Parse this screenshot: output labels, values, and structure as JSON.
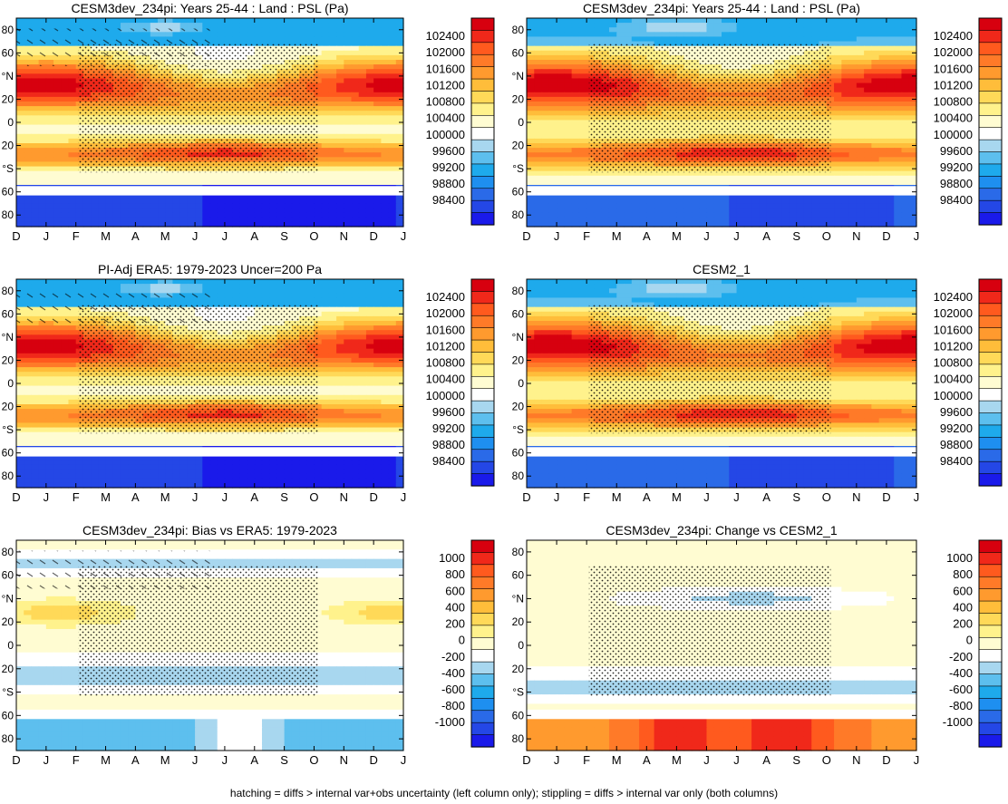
{
  "footnote": "hatching = diffs > internal var+obs uncertainty (left column only); stippling = diffs > internal var only (both columns)",
  "axes": {
    "months": [
      "D",
      "J",
      "F",
      "M",
      "A",
      "M",
      "J",
      "J",
      "A",
      "S",
      "O",
      "N",
      "D",
      "J"
    ],
    "lat_tick_labels": [
      "80",
      "60",
      "°N",
      "20",
      "0",
      "20",
      "°S",
      "60",
      "80"
    ],
    "lat_tick_values": [
      80,
      60,
      40,
      20,
      0,
      -20,
      -40,
      -60,
      -80
    ],
    "lat_range": [
      -90,
      90
    ]
  },
  "colorbars": {
    "psl": {
      "labels": [
        "102400",
        "102000",
        "101600",
        "101200",
        "100800",
        "100400",
        "100000",
        "99600",
        "99200",
        "98800",
        "98400"
      ],
      "colors": [
        "#d7000f",
        "#f0281a",
        "#ff5a1e",
        "#ff7a28",
        "#ff9a2e",
        "#ffbd3a",
        "#ffd958",
        "#fff28c",
        "#fffcd2",
        "#ffffff",
        "#a8d7ef",
        "#5dbfee",
        "#1eaaec",
        "#1e8ff0",
        "#2a6ae8",
        "#2447e6",
        "#1a1aea"
      ]
    },
    "diff": {
      "labels": [
        "1000",
        "800",
        "600",
        "400",
        "200",
        "0",
        "-200",
        "-400",
        "-600",
        "-800",
        "-1000"
      ],
      "colors": [
        "#d7000f",
        "#f0281a",
        "#ff5a1e",
        "#ff7a28",
        "#ff9a2e",
        "#ffbd3a",
        "#ffd958",
        "#fff28c",
        "#fffcd2",
        "#ffffff",
        "#a8d7ef",
        "#5dbfee",
        "#1eaaec",
        "#1e8ff0",
        "#2a6ae8",
        "#2447e6",
        "#1a1aea"
      ]
    }
  },
  "chart_data": [
    {
      "type": "heatmap",
      "title": "CESM3dev_234pi: Years 25-44 : Land : PSL (Pa)",
      "field": "psl",
      "hatch": true,
      "stipple": true,
      "xlabel": "",
      "ylabel": "",
      "x": [
        "D",
        "J",
        "F",
        "M",
        "A",
        "M",
        "J",
        "J",
        "A",
        "S",
        "O",
        "N",
        "D",
        "J"
      ],
      "ylim": [
        -90,
        90
      ],
      "clim": [
        98400,
        102400
      ]
    },
    {
      "type": "heatmap",
      "title": "CESM3dev_234pi: Years 25-44 : Land : PSL (Pa)",
      "field": "psl",
      "hatch": false,
      "stipple": true,
      "xlabel": "",
      "ylabel": "",
      "x": [
        "D",
        "J",
        "F",
        "M",
        "A",
        "M",
        "J",
        "J",
        "A",
        "S",
        "O",
        "N",
        "D",
        "J"
      ],
      "ylim": [
        -90,
        90
      ],
      "clim": [
        98400,
        102400
      ]
    },
    {
      "type": "heatmap",
      "title": "PI-Adj ERA5: 1979-2023 Uncer=200 Pa",
      "field": "psl",
      "hatch": true,
      "stipple": true,
      "xlabel": "",
      "ylabel": "",
      "x": [
        "D",
        "J",
        "F",
        "M",
        "A",
        "M",
        "J",
        "J",
        "A",
        "S",
        "O",
        "N",
        "D",
        "J"
      ],
      "ylim": [
        -90,
        90
      ],
      "clim": [
        98400,
        102400
      ]
    },
    {
      "type": "heatmap",
      "title": "CESM2_1",
      "field": "psl",
      "hatch": false,
      "stipple": true,
      "xlabel": "",
      "ylabel": "",
      "x": [
        "D",
        "J",
        "F",
        "M",
        "A",
        "M",
        "J",
        "J",
        "A",
        "S",
        "O",
        "N",
        "D",
        "J"
      ],
      "ylim": [
        -90,
        90
      ],
      "clim": [
        98400,
        102400
      ]
    },
    {
      "type": "heatmap",
      "title": "CESM3dev_234pi: Bias vs ERA5: 1979-2023",
      "field": "bias",
      "hatch": true,
      "stipple": true,
      "xlabel": "",
      "ylabel": "",
      "x": [
        "D",
        "J",
        "F",
        "M",
        "A",
        "M",
        "J",
        "J",
        "A",
        "S",
        "O",
        "N",
        "D",
        "J"
      ],
      "ylim": [
        -90,
        90
      ],
      "clim": [
        -1000,
        1000
      ]
    },
    {
      "type": "heatmap",
      "title": "CESM3dev_234pi: Change vs CESM2_1",
      "field": "change",
      "hatch": false,
      "stipple": true,
      "xlabel": "",
      "ylabel": "",
      "x": [
        "D",
        "J",
        "F",
        "M",
        "A",
        "M",
        "J",
        "J",
        "A",
        "S",
        "O",
        "N",
        "D",
        "J"
      ],
      "ylim": [
        -90,
        90
      ],
      "clim": [
        -1000,
        1000
      ]
    }
  ]
}
